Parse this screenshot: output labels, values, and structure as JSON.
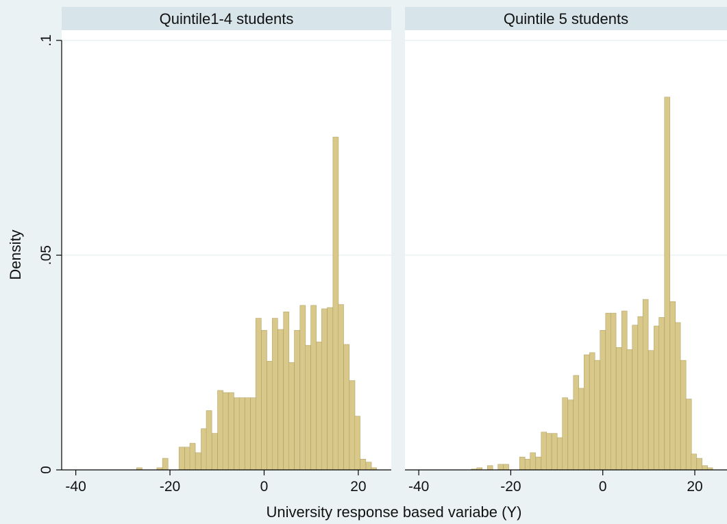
{
  "chart_data": {
    "type": "bar",
    "xlabel": "University response based variabe (Y)",
    "ylabel": "Density",
    "xlim": [
      -43,
      27
    ],
    "ylim": [
      0,
      0.1
    ],
    "xticks": [
      -40,
      -20,
      0,
      20
    ],
    "xtick_labels": [
      "-40",
      "-20",
      "0",
      "20"
    ],
    "yticks": [
      0,
      0.05,
      0.1
    ],
    "ytick_labels": [
      "0",
      ".05",
      ".1"
    ],
    "bar_color": "#d8c98b",
    "background_color": "#eaf2f3",
    "strip_color": "#d7e4ea",
    "grid": true,
    "bin_width": 1.17,
    "panels": [
      {
        "title": "Quintile1-4 students",
        "bins": [
          {
            "x": -26.5,
            "y": 0.0005
          },
          {
            "x": -22.2,
            "y": 0.0005
          },
          {
            "x": -21.0,
            "y": 0.0027
          },
          {
            "x": -17.5,
            "y": 0.0053
          },
          {
            "x": -16.3,
            "y": 0.0053
          },
          {
            "x": -15.2,
            "y": 0.0062
          },
          {
            "x": -14.0,
            "y": 0.004
          },
          {
            "x": -12.8,
            "y": 0.0096
          },
          {
            "x": -11.7,
            "y": 0.0138
          },
          {
            "x": -10.5,
            "y": 0.0085
          },
          {
            "x": -9.3,
            "y": 0.0185
          },
          {
            "x": -8.2,
            "y": 0.018
          },
          {
            "x": -7.0,
            "y": 0.018
          },
          {
            "x": -5.8,
            "y": 0.0168
          },
          {
            "x": -4.7,
            "y": 0.0168
          },
          {
            "x": -3.5,
            "y": 0.0168
          },
          {
            "x": -2.3,
            "y": 0.0168
          },
          {
            "x": -1.2,
            "y": 0.0353
          },
          {
            "x": 0.0,
            "y": 0.0325
          },
          {
            "x": 1.2,
            "y": 0.0253
          },
          {
            "x": 2.3,
            "y": 0.0353
          },
          {
            "x": 3.5,
            "y": 0.0327
          },
          {
            "x": 4.7,
            "y": 0.0368
          },
          {
            "x": 5.8,
            "y": 0.025
          },
          {
            "x": 7.0,
            "y": 0.0325
          },
          {
            "x": 8.2,
            "y": 0.0383
          },
          {
            "x": 9.3,
            "y": 0.029
          },
          {
            "x": 10.5,
            "y": 0.0383
          },
          {
            "x": 11.7,
            "y": 0.0298
          },
          {
            "x": 12.8,
            "y": 0.0375
          },
          {
            "x": 14.0,
            "y": 0.0378
          },
          {
            "x": 15.2,
            "y": 0.0775
          },
          {
            "x": 16.3,
            "y": 0.0385
          },
          {
            "x": 17.5,
            "y": 0.0292
          },
          {
            "x": 18.7,
            "y": 0.0208
          },
          {
            "x": 19.8,
            "y": 0.0125
          },
          {
            "x": 21.0,
            "y": 0.0025
          },
          {
            "x": 22.2,
            "y": 0.0018
          },
          {
            "x": 23.3,
            "y": 0.0005
          }
        ]
      },
      {
        "title": "Quintile 5 students",
        "bins": [
          {
            "x": -28.0,
            "y": 0.0002
          },
          {
            "x": -26.8,
            "y": 0.0005
          },
          {
            "x": -24.5,
            "y": 0.001
          },
          {
            "x": -22.2,
            "y": 0.0013
          },
          {
            "x": -21.0,
            "y": 0.0013
          },
          {
            "x": -17.5,
            "y": 0.003
          },
          {
            "x": -16.3,
            "y": 0.0025
          },
          {
            "x": -15.2,
            "y": 0.004
          },
          {
            "x": -14.0,
            "y": 0.003
          },
          {
            "x": -12.8,
            "y": 0.0088
          },
          {
            "x": -11.7,
            "y": 0.0085
          },
          {
            "x": -10.5,
            "y": 0.0085
          },
          {
            "x": -9.3,
            "y": 0.0075
          },
          {
            "x": -8.2,
            "y": 0.0168
          },
          {
            "x": -7.0,
            "y": 0.0163
          },
          {
            "x": -5.8,
            "y": 0.022
          },
          {
            "x": -4.7,
            "y": 0.019
          },
          {
            "x": -3.5,
            "y": 0.0268
          },
          {
            "x": -2.3,
            "y": 0.0273
          },
          {
            "x": -1.2,
            "y": 0.0255
          },
          {
            "x": 0.0,
            "y": 0.0325
          },
          {
            "x": 1.2,
            "y": 0.0365
          },
          {
            "x": 2.3,
            "y": 0.0365
          },
          {
            "x": 3.5,
            "y": 0.0285
          },
          {
            "x": 4.7,
            "y": 0.037
          },
          {
            "x": 5.8,
            "y": 0.028
          },
          {
            "x": 7.0,
            "y": 0.0337
          },
          {
            "x": 8.2,
            "y": 0.0357
          },
          {
            "x": 9.3,
            "y": 0.0397
          },
          {
            "x": 10.5,
            "y": 0.0278
          },
          {
            "x": 11.7,
            "y": 0.0335
          },
          {
            "x": 12.8,
            "y": 0.0355
          },
          {
            "x": 14.0,
            "y": 0.0868
          },
          {
            "x": 15.2,
            "y": 0.0392
          },
          {
            "x": 16.3,
            "y": 0.0343
          },
          {
            "x": 17.5,
            "y": 0.0255
          },
          {
            "x": 18.7,
            "y": 0.0165
          },
          {
            "x": 19.8,
            "y": 0.0037
          },
          {
            "x": 21.0,
            "y": 0.0027
          },
          {
            "x": 22.2,
            "y": 0.001
          },
          {
            "x": 23.3,
            "y": 0.0005
          }
        ]
      }
    ]
  }
}
